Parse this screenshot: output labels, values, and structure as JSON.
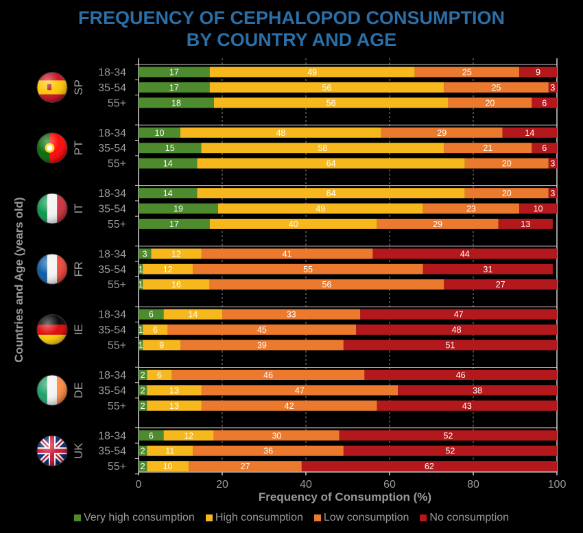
{
  "chart_data": {
    "type": "bar",
    "orientation": "horizontal",
    "stacked": true,
    "title": [
      "FREQUENCY OF CEPHALOPOD CONSUMPTION",
      "BY COUNTRY AND AGE"
    ],
    "xlabel": "Frequency of Consumption (%)",
    "ylabel": "Countries and Age (years old)",
    "xlim": [
      0,
      100
    ],
    "xticks": [
      "0",
      "20",
      "40",
      "60",
      "80",
      "100"
    ],
    "legend_position": "bottom",
    "series": [
      {
        "name": "Very high consumption",
        "color": "#4e8a2e"
      },
      {
        "name": "High consumption",
        "color": "#f6b81c"
      },
      {
        "name": "Low consumption",
        "color": "#eb7a2e"
      },
      {
        "name": "No consumption",
        "color": "#b3191c"
      }
    ],
    "groups": [
      {
        "country": "SP",
        "flag": "spain-flag-icon",
        "rows": [
          {
            "age": "18-34",
            "values": [
              17,
              49,
              25,
              9
            ]
          },
          {
            "age": "35-54",
            "values": [
              17,
              56,
              25,
              3
            ]
          },
          {
            "age": "55+",
            "values": [
              18,
              56,
              20,
              6
            ]
          }
        ]
      },
      {
        "country": "PT",
        "flag": "portugal-flag-icon",
        "rows": [
          {
            "age": "18-34",
            "values": [
              10,
              48,
              29,
              14
            ]
          },
          {
            "age": "35-54",
            "values": [
              15,
              58,
              21,
              6
            ]
          },
          {
            "age": "55+",
            "values": [
              14,
              64,
              20,
              3
            ]
          }
        ]
      },
      {
        "country": "IT",
        "flag": "italy-flag-icon",
        "rows": [
          {
            "age": "18-34",
            "values": [
              14,
              64,
              20,
              3
            ]
          },
          {
            "age": "35-54",
            "values": [
              19,
              49,
              23,
              10
            ]
          },
          {
            "age": "55+",
            "values": [
              17,
              40,
              29,
              13
            ]
          }
        ]
      },
      {
        "country": "FR",
        "flag": "france-flag-icon",
        "rows": [
          {
            "age": "18-34",
            "values": [
              3,
              12,
              41,
              44
            ]
          },
          {
            "age": "35-54",
            "values": [
              1,
              12,
              55,
              31
            ]
          },
          {
            "age": "55+",
            "values": [
              1,
              16,
              56,
              27
            ]
          }
        ]
      },
      {
        "country": "IE",
        "flag": "germany-flag-icon",
        "rows": [
          {
            "age": "18-34",
            "values": [
              6,
              14,
              33,
              47
            ]
          },
          {
            "age": "35-54",
            "values": [
              1,
              6,
              45,
              48
            ]
          },
          {
            "age": "55+",
            "values": [
              1,
              9,
              39,
              51
            ]
          }
        ]
      },
      {
        "country": "DE",
        "flag": "ireland-flag-icon",
        "rows": [
          {
            "age": "18-34",
            "values": [
              2,
              6,
              46,
              46
            ]
          },
          {
            "age": "35-54",
            "values": [
              2,
              13,
              47,
              38
            ]
          },
          {
            "age": "55+",
            "values": [
              2,
              13,
              42,
              43
            ]
          }
        ]
      },
      {
        "country": "UK",
        "flag": "uk-flag-icon",
        "rows": [
          {
            "age": "18-34",
            "values": [
              6,
              12,
              30,
              52
            ]
          },
          {
            "age": "35-54",
            "values": [
              2,
              11,
              36,
              52
            ]
          },
          {
            "age": "55+",
            "values": [
              2,
              10,
              27,
              62
            ]
          }
        ]
      }
    ]
  }
}
